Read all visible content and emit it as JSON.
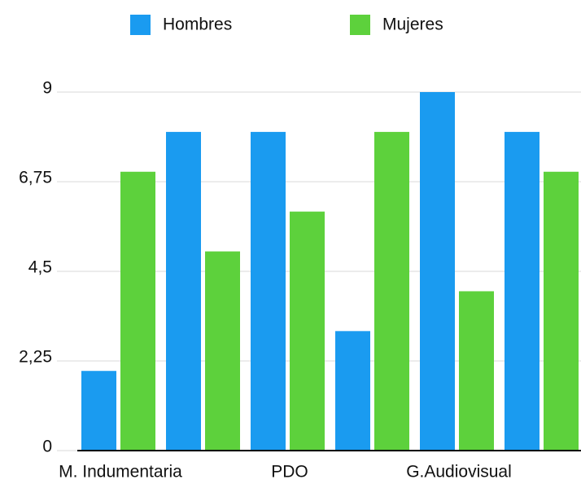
{
  "chart_data": {
    "type": "bar",
    "categories": [
      "M. Indumentaria",
      null,
      "PDO",
      null,
      "G.Audiovisual",
      null
    ],
    "series": [
      {
        "name": "Hombres",
        "color": "#1a9bf0",
        "values": [
          2,
          8,
          8,
          3,
          9,
          8
        ]
      },
      {
        "name": "Mujeres",
        "color": "#5dd13c",
        "values": [
          7,
          5,
          6,
          8,
          4,
          7
        ]
      }
    ],
    "ylim": [
      0,
      9
    ],
    "yticks": [
      0,
      {
        "value": 2.25,
        "label": "2,25"
      },
      {
        "value": 4.5,
        "label": "4,5"
      },
      {
        "value": 6.75,
        "label": "6,75"
      },
      9
    ],
    "grid": true,
    "legend": "top"
  }
}
